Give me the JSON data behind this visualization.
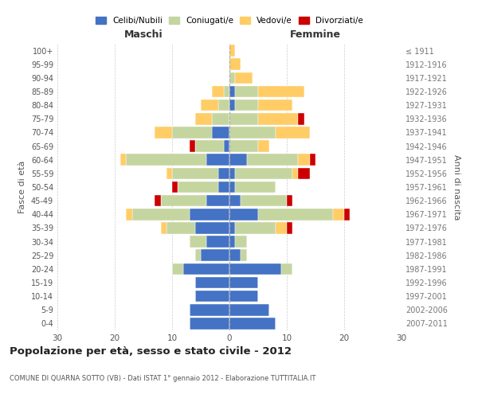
{
  "age_groups": [
    "0-4",
    "5-9",
    "10-14",
    "15-19",
    "20-24",
    "25-29",
    "30-34",
    "35-39",
    "40-44",
    "45-49",
    "50-54",
    "55-59",
    "60-64",
    "65-69",
    "70-74",
    "75-79",
    "80-84",
    "85-89",
    "90-94",
    "95-99",
    "100+"
  ],
  "birth_years": [
    "2007-2011",
    "2002-2006",
    "1997-2001",
    "1992-1996",
    "1987-1991",
    "1982-1986",
    "1977-1981",
    "1972-1976",
    "1967-1971",
    "1962-1966",
    "1957-1961",
    "1952-1956",
    "1947-1951",
    "1942-1946",
    "1937-1941",
    "1932-1936",
    "1927-1931",
    "1922-1926",
    "1917-1921",
    "1912-1916",
    "≤ 1911"
  ],
  "maschi": {
    "celibi": [
      7,
      7,
      6,
      6,
      8,
      5,
      4,
      6,
      7,
      4,
      2,
      2,
      4,
      1,
      3,
      0,
      0,
      0,
      0,
      0,
      0
    ],
    "coniugati": [
      0,
      0,
      0,
      0,
      2,
      1,
      3,
      5,
      10,
      8,
      7,
      8,
      14,
      5,
      7,
      3,
      2,
      1,
      0,
      0,
      0
    ],
    "vedovi": [
      0,
      0,
      0,
      0,
      0,
      0,
      0,
      1,
      1,
      0,
      0,
      1,
      1,
      0,
      3,
      3,
      3,
      2,
      0,
      0,
      0
    ],
    "divorziati": [
      0,
      0,
      0,
      0,
      0,
      0,
      0,
      0,
      0,
      1,
      1,
      0,
      0,
      1,
      0,
      0,
      0,
      0,
      0,
      0,
      0
    ]
  },
  "femmine": {
    "nubili": [
      8,
      7,
      5,
      5,
      9,
      2,
      1,
      1,
      5,
      2,
      1,
      1,
      3,
      0,
      0,
      0,
      1,
      1,
      0,
      0,
      0
    ],
    "coniugate": [
      0,
      0,
      0,
      0,
      2,
      1,
      2,
      7,
      13,
      8,
      7,
      10,
      9,
      5,
      8,
      5,
      4,
      4,
      1,
      0,
      0
    ],
    "vedove": [
      0,
      0,
      0,
      0,
      0,
      0,
      0,
      2,
      2,
      0,
      0,
      1,
      2,
      2,
      6,
      7,
      6,
      8,
      3,
      2,
      1
    ],
    "divorziate": [
      0,
      0,
      0,
      0,
      0,
      0,
      0,
      1,
      1,
      1,
      0,
      2,
      1,
      0,
      0,
      1,
      0,
      0,
      0,
      0,
      0
    ]
  },
  "colors": {
    "celibi_nubili": "#4472C4",
    "coniugati_e": "#C5D5A0",
    "vedovi_e": "#FFCC66",
    "divorziati_e": "#CC0000"
  },
  "title": "Popolazione per età, sesso e stato civile - 2012",
  "subtitle": "COMUNE DI QUARNA SOTTO (VB) - Dati ISTAT 1° gennaio 2012 - Elaborazione TUTTITALIA.IT",
  "ylabel_left": "Fasce di età",
  "ylabel_right": "Anni di nascita",
  "xlabel_maschi": "Maschi",
  "xlabel_femmine": "Femmine",
  "xlim": 30,
  "legend_labels": [
    "Celibi/Nubili",
    "Coniugati/e",
    "Vedovi/e",
    "Divorziati/e"
  ],
  "bg_color": "#ffffff",
  "grid_color": "#cccccc"
}
